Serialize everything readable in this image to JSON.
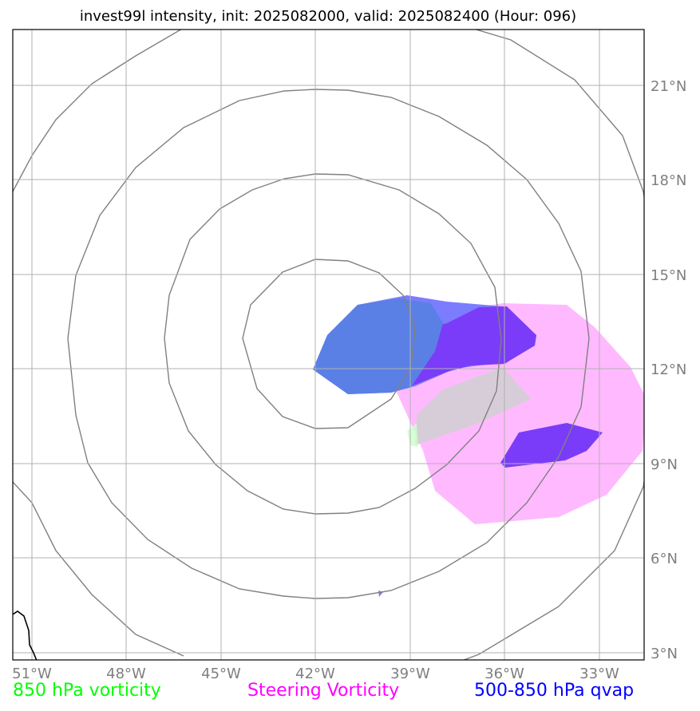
{
  "title": "invest99l intensity, init: 2025082000, valid: 2025082400 (Hour: 096)",
  "lon_labels": [
    "51°W",
    "48°W",
    "45°W",
    "42°W",
    "39°W",
    "36°W",
    "33°W"
  ],
  "lat_labels": [
    "21°N",
    "18°N",
    "15°N",
    "12°N",
    "9°N",
    "6°N",
    "3°N"
  ],
  "legend": {
    "vort850": {
      "label": "850 hPa vorticity",
      "color": "#00ff00"
    },
    "steering": {
      "label": "Steering Vorticity",
      "color": "#ff00ff"
    },
    "qvap": {
      "label": "500-850 hPa qvap",
      "color": "#0000ff"
    }
  },
  "colors": {
    "steering_fill": "#ffbaff",
    "vort_fill": "#d7cdd8",
    "qvap_light": "#7c7cff",
    "qvap_dark": "#7a3cf8",
    "qvap_overlap": "#5a80e6",
    "grid": "#b0b0b0",
    "rings": "#808080",
    "coast": "#000000",
    "tick_label": "#7f7f7f"
  }
}
